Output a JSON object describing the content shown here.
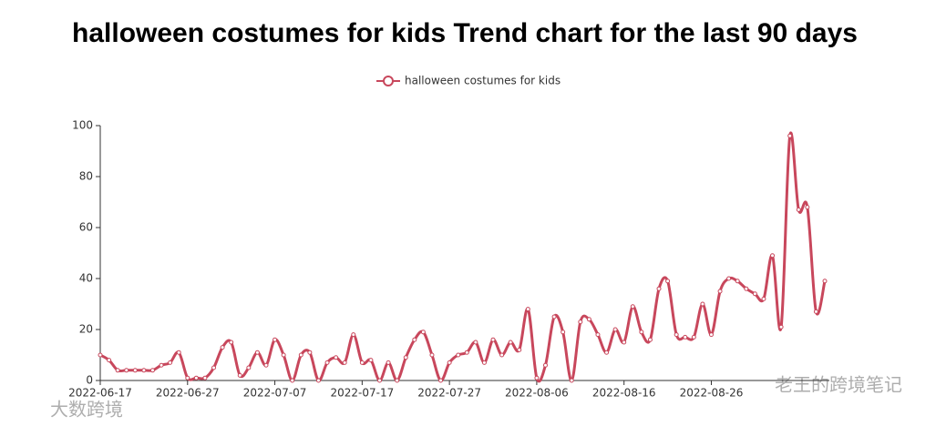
{
  "chart_data": {
    "type": "line",
    "title": "halloween costumes for kids Trend chart for the last 90 days",
    "categories": [
      "2022-06-17",
      null,
      null,
      null,
      null,
      null,
      null,
      null,
      null,
      null,
      "2022-06-27",
      null,
      null,
      null,
      null,
      null,
      null,
      null,
      null,
      null,
      "2022-07-07",
      null,
      null,
      null,
      null,
      null,
      null,
      null,
      null,
      null,
      "2022-07-17",
      null,
      null,
      null,
      null,
      null,
      null,
      null,
      null,
      null,
      "2022-07-27",
      null,
      null,
      null,
      null,
      null,
      null,
      null,
      null,
      null,
      "2022-08-06",
      null,
      null,
      null,
      null,
      null,
      null,
      null,
      null,
      null,
      "2022-08-16",
      null,
      null,
      null,
      null,
      null,
      null,
      null,
      null,
      null,
      "2022-08-26",
      null,
      null,
      null,
      null,
      null,
      null,
      null,
      null,
      null,
      null,
      null,
      null,
      null
    ],
    "series": [
      {
        "name": "halloween costumes for kids",
        "color": "#c8475c",
        "values": [
          10,
          8,
          4,
          4,
          4,
          4,
          4,
          6,
          7,
          11,
          1,
          1,
          1,
          5,
          13,
          15,
          2,
          5,
          11,
          6,
          16,
          10,
          0,
          10,
          11,
          0,
          7,
          9,
          7,
          18,
          7,
          8,
          0,
          7,
          0,
          9,
          16,
          19,
          10,
          0,
          7,
          10,
          11,
          15,
          7,
          16,
          10,
          15,
          12,
          28,
          1,
          6,
          25,
          19,
          0,
          23,
          24,
          18,
          11,
          20,
          15,
          29,
          19,
          16,
          36,
          39,
          18,
          17,
          17,
          30,
          18,
          35,
          40,
          39,
          36,
          34,
          32,
          49,
          21,
          96,
          67,
          68,
          27,
          39
        ]
      }
    ],
    "ylim": [
      0,
      100
    ],
    "yticks": [
      0,
      20,
      40,
      60,
      80,
      100
    ],
    "smooth": true,
    "legend": "top",
    "watermarks": [
      "老王的跨境笔记",
      "大数跨境"
    ]
  }
}
